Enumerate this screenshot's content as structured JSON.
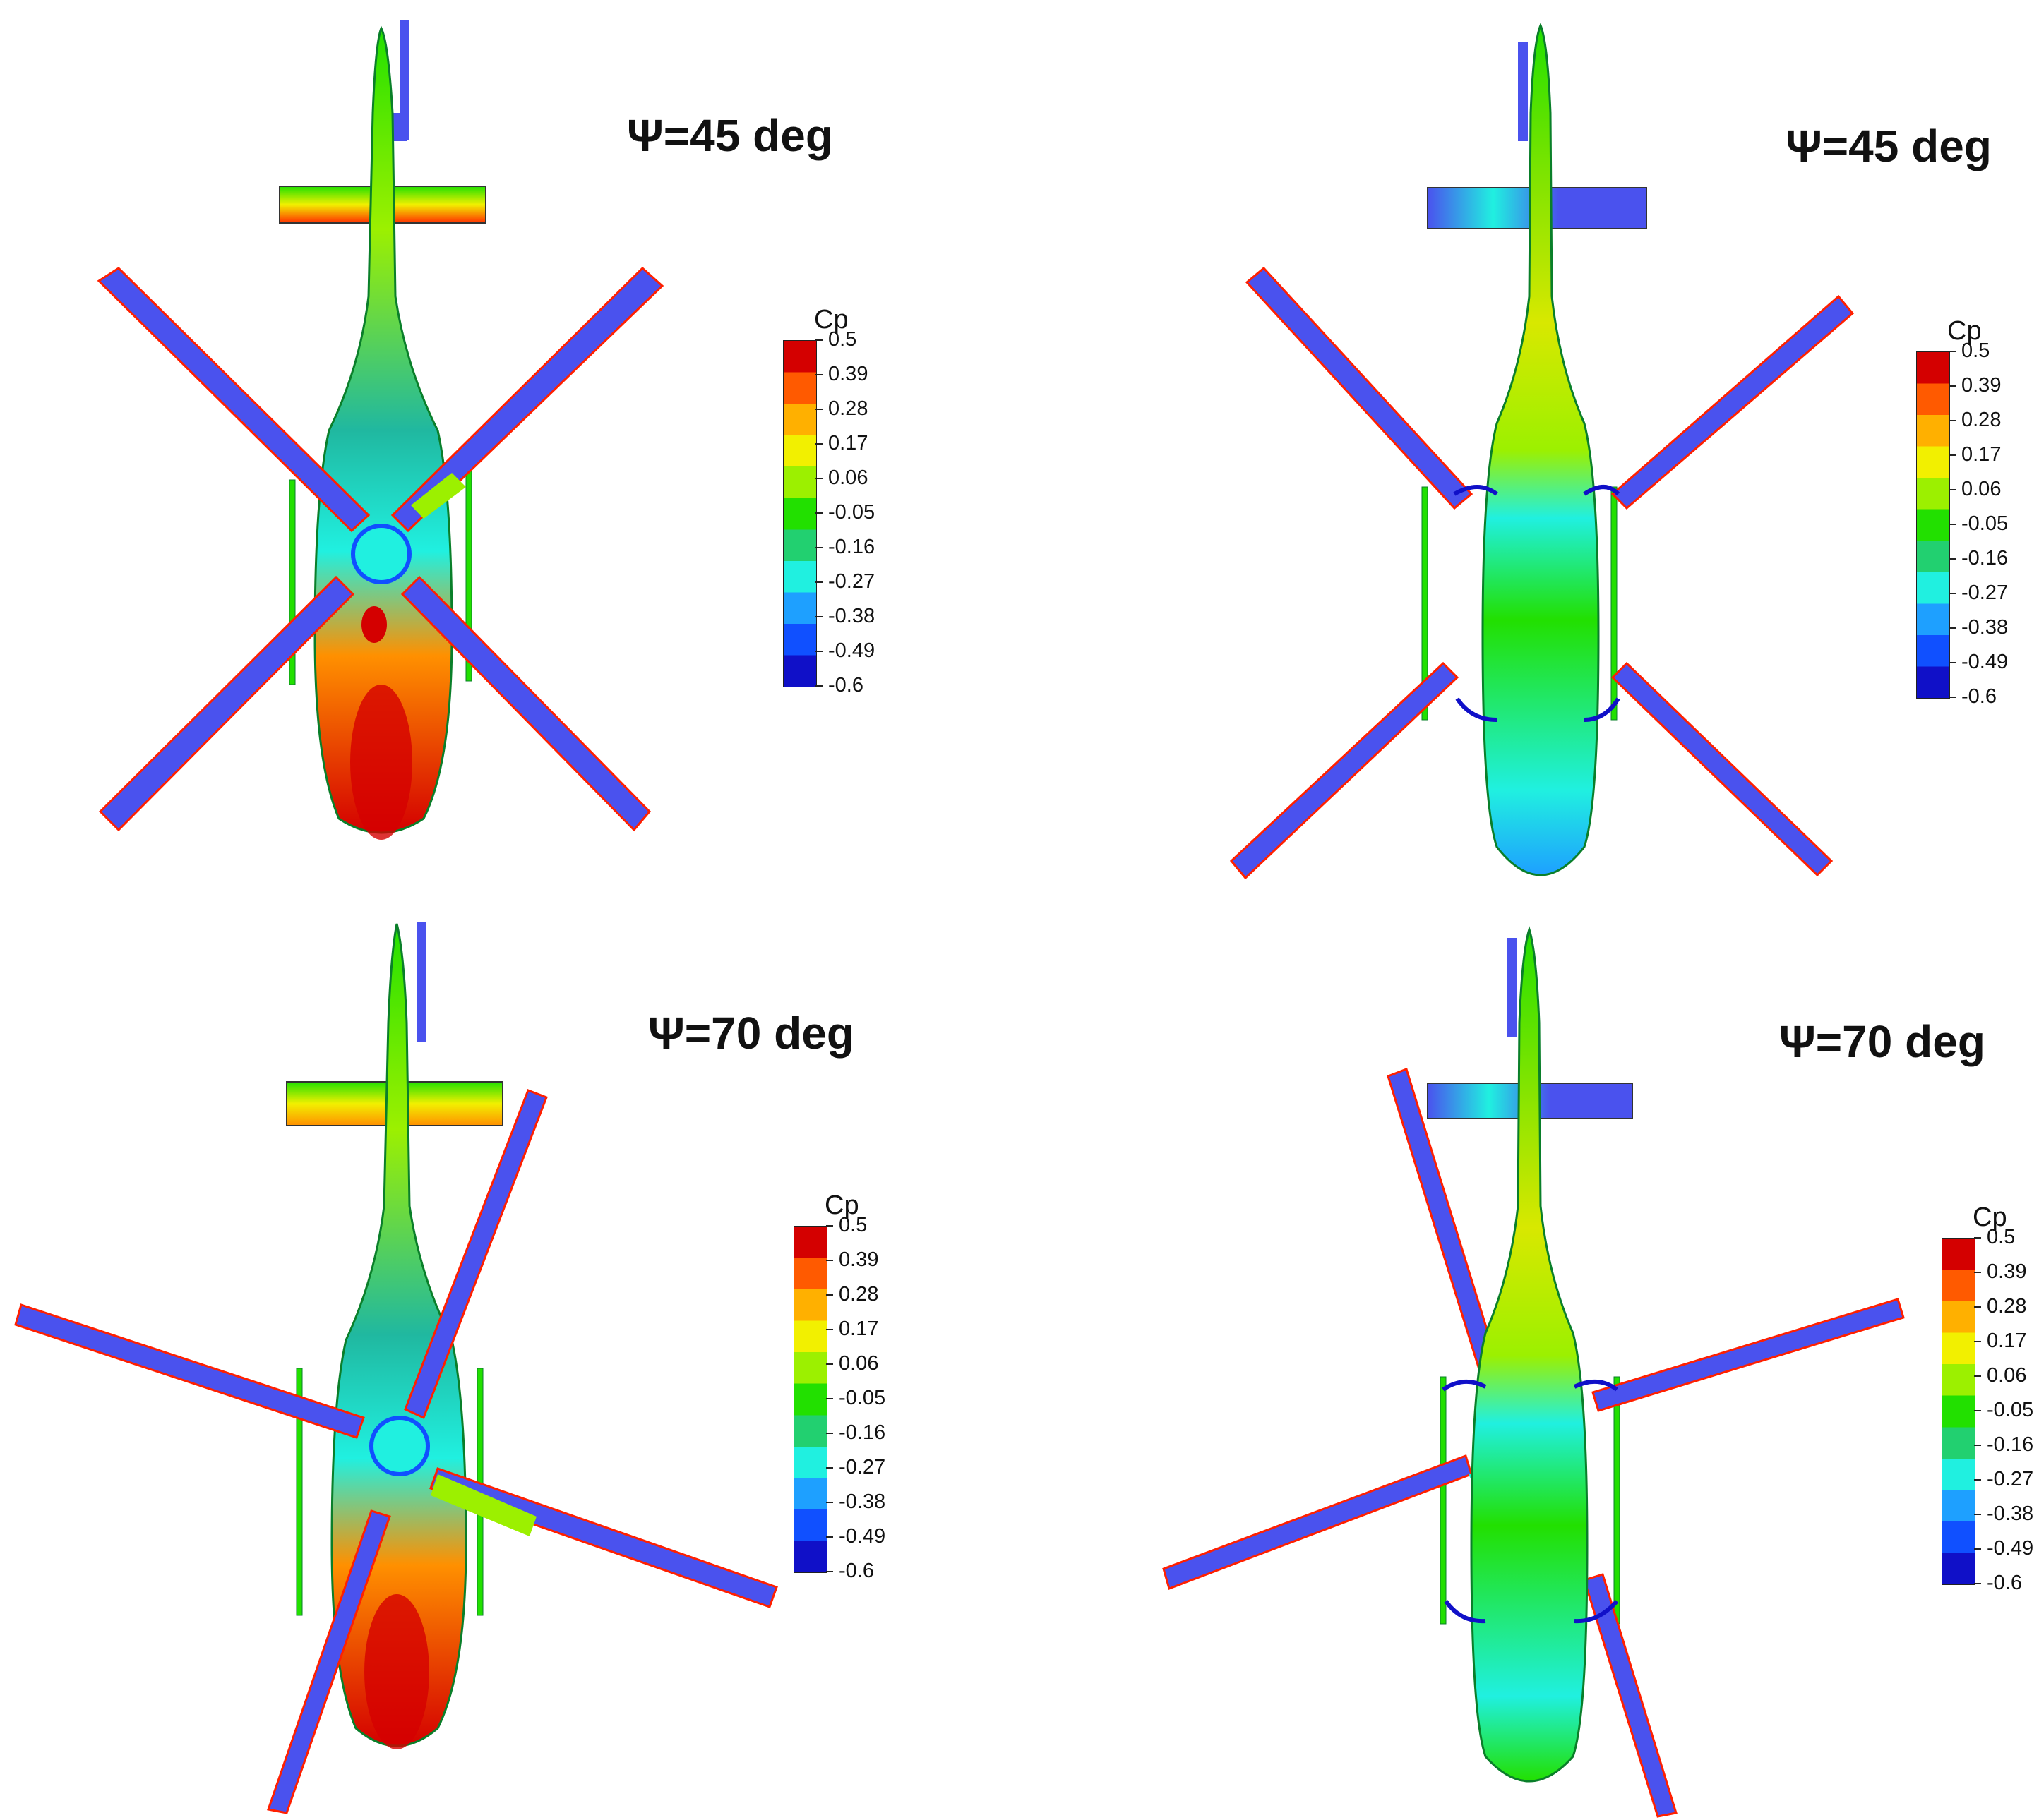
{
  "panels": [
    {
      "title": "Ψ=45 deg",
      "psi_deg": 45,
      "case": "left"
    },
    {
      "title": "Ψ=45 deg",
      "psi_deg": 45,
      "case": "right"
    },
    {
      "title": "Ψ=70 deg",
      "psi_deg": 70,
      "case": "left"
    },
    {
      "title": "Ψ=70 deg",
      "psi_deg": 70,
      "case": "right"
    }
  ],
  "legend": {
    "title": "Cp",
    "labels": [
      "0.5",
      "0.39",
      "0.28",
      "0.17",
      "0.06",
      "-0.05",
      "-0.16",
      "-0.27",
      "-0.38",
      "-0.49",
      "-0.6"
    ],
    "colors": [
      "#d40000",
      "#ff5a00",
      "#ffb000",
      "#f2f000",
      "#9cf000",
      "#22e000",
      "#22d070",
      "#20f0e0",
      "#1ea0ff",
      "#1050ff",
      "#1010c8"
    ]
  },
  "colors": {
    "high": "#d40000",
    "mid_high": "#ffb000",
    "neutral": "#22e000",
    "mid_low": "#20f0e0",
    "low": "#1010c8",
    "blade": "#4a52ee",
    "outline": "#0a7f2a"
  }
}
